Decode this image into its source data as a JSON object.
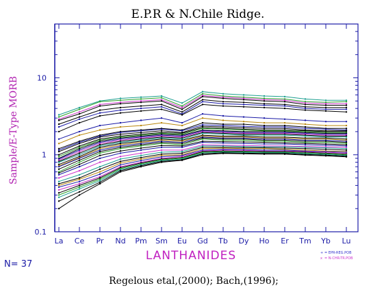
{
  "chart_data": {
    "type": "line",
    "title": "E.P.R & N.Chile Ridge.",
    "ylabel": "Sample/E-Type MORB",
    "xlabel": "LANTHANIDES",
    "y_scale": "log",
    "ylim": [
      0.1,
      50
    ],
    "y_ticks": [
      "0.1",
      "1",
      "10"
    ],
    "categories": [
      "La",
      "Ce",
      "Pr",
      "Nd",
      "Pm",
      "Sm",
      "Eu",
      "Gd",
      "Tb",
      "Dy",
      "Ho",
      "Er",
      "Tm",
      "Yb",
      "Lu"
    ],
    "legend": [
      "EPR-REG.POB",
      "N-CHR-TR.POB"
    ],
    "n_label": "N= 37",
    "source": "Regelous etal,(2000); Bach,(1996);",
    "colors": {
      "axes": "#1a1aa6",
      "title": "#000000",
      "ylabel": "#b01fb0",
      "xlabel": "#c020c0",
      "n_label": "#1a1aa6",
      "legend_epr": "#3333cc",
      "legend_nchr": "#cc33cc"
    },
    "series": [
      {
        "color": "#1b9e8f",
        "values": [
          3.3,
          4.1,
          5.0,
          5.4,
          5.6,
          5.8,
          4.7,
          6.6,
          6.2,
          6.0,
          5.8,
          5.7,
          5.3,
          5.1,
          5.1
        ]
      },
      {
        "color": "#2ca02c",
        "values": [
          3.1,
          3.9,
          4.9,
          5.1,
          5.3,
          5.5,
          4.3,
          6.2,
          5.8,
          5.6,
          5.4,
          5.3,
          4.9,
          4.8,
          4.9
        ]
      },
      {
        "color": "#cc33cc",
        "values": [
          2.9,
          3.6,
          4.5,
          4.8,
          5.0,
          5.2,
          4.1,
          5.9,
          5.6,
          5.4,
          5.2,
          5.1,
          4.7,
          4.6,
          4.6
        ]
      },
      {
        "color": "#000000",
        "values": [
          2.8,
          3.4,
          4.3,
          4.6,
          4.8,
          5.0,
          3.9,
          5.7,
          5.4,
          5.2,
          5.0,
          4.9,
          4.5,
          4.4,
          4.4
        ]
      },
      {
        "color": "#000000",
        "values": [
          2.5,
          3.1,
          3.8,
          4.1,
          4.3,
          4.5,
          3.6,
          5.2,
          4.9,
          4.8,
          4.6,
          4.5,
          4.2,
          4.1,
          4.1
        ]
      },
      {
        "color": "#1a1aa6",
        "values": [
          2.3,
          2.9,
          3.5,
          3.8,
          4.0,
          4.2,
          3.4,
          4.9,
          4.6,
          4.5,
          4.4,
          4.3,
          4.0,
          3.9,
          3.9
        ]
      },
      {
        "color": "#000000",
        "values": [
          2.0,
          2.6,
          3.2,
          3.5,
          3.7,
          3.9,
          3.3,
          4.5,
          4.3,
          4.2,
          4.1,
          4.0,
          3.8,
          3.7,
          3.6
        ]
      },
      {
        "color": "#1a1aa6",
        "values": [
          1.6,
          2.0,
          2.4,
          2.6,
          2.8,
          3.0,
          2.6,
          3.4,
          3.2,
          3.1,
          3.0,
          2.9,
          2.8,
          2.7,
          2.7
        ]
      },
      {
        "color": "#b8860b",
        "values": [
          1.4,
          1.8,
          2.1,
          2.3,
          2.4,
          2.6,
          2.4,
          3.0,
          2.8,
          2.7,
          2.6,
          2.6,
          2.5,
          2.4,
          2.4
        ]
      },
      {
        "color": "#000000",
        "values": [
          1.2,
          1.5,
          1.8,
          2.0,
          2.1,
          2.2,
          2.1,
          2.6,
          2.5,
          2.5,
          2.4,
          2.4,
          2.3,
          2.2,
          2.2
        ]
      },
      {
        "color": "#1a1aa6",
        "values": [
          1.15,
          1.45,
          1.75,
          1.95,
          2.05,
          2.15,
          2.05,
          2.45,
          2.4,
          2.35,
          2.3,
          2.3,
          2.2,
          2.15,
          2.1
        ]
      },
      {
        "color": "#000000",
        "values": [
          1.1,
          1.4,
          1.7,
          1.85,
          1.95,
          2.05,
          1.95,
          2.35,
          2.3,
          2.25,
          2.2,
          2.2,
          2.1,
          2.05,
          2.05
        ]
      },
      {
        "color": "#000000",
        "values": [
          1.0,
          1.3,
          1.6,
          1.75,
          1.85,
          1.95,
          1.9,
          2.25,
          2.2,
          2.15,
          2.1,
          2.1,
          2.05,
          2.0,
          2.0
        ]
      },
      {
        "color": "#2ca02c",
        "values": [
          0.95,
          1.25,
          1.55,
          1.7,
          1.8,
          1.9,
          1.85,
          2.2,
          2.15,
          2.1,
          2.05,
          2.05,
          2.0,
          1.95,
          1.95
        ]
      },
      {
        "color": "#000000",
        "values": [
          0.9,
          1.2,
          1.5,
          1.65,
          1.75,
          1.85,
          1.8,
          2.1,
          2.05,
          2.0,
          2.0,
          2.0,
          1.95,
          1.9,
          1.9
        ]
      },
      {
        "color": "#1a1aa6",
        "values": [
          0.88,
          1.15,
          1.45,
          1.6,
          1.7,
          1.8,
          1.75,
          2.05,
          2.0,
          1.95,
          1.95,
          1.95,
          1.9,
          1.85,
          1.85
        ]
      },
      {
        "color": "#cc33cc",
        "values": [
          0.85,
          1.1,
          1.4,
          1.55,
          1.65,
          1.75,
          1.7,
          2.0,
          1.95,
          1.9,
          1.9,
          1.9,
          1.85,
          1.8,
          1.8
        ]
      },
      {
        "color": "#000000",
        "values": [
          0.82,
          1.05,
          1.35,
          1.5,
          1.6,
          1.7,
          1.65,
          1.95,
          1.9,
          1.85,
          1.85,
          1.85,
          1.8,
          1.75,
          1.75
        ]
      },
      {
        "color": "#1b9e8f",
        "values": [
          0.8,
          1.0,
          1.3,
          1.45,
          1.55,
          1.65,
          1.6,
          1.9,
          1.85,
          1.8,
          1.8,
          1.8,
          1.75,
          1.7,
          1.7
        ]
      },
      {
        "color": "#000000",
        "values": [
          0.75,
          0.95,
          1.25,
          1.4,
          1.5,
          1.6,
          1.55,
          1.8,
          1.75,
          1.75,
          1.7,
          1.7,
          1.65,
          1.65,
          1.6
        ]
      },
      {
        "color": "#b8860b",
        "values": [
          0.72,
          0.92,
          1.2,
          1.35,
          1.45,
          1.55,
          1.5,
          1.75,
          1.7,
          1.7,
          1.65,
          1.65,
          1.6,
          1.6,
          1.55
        ]
      },
      {
        "color": "#1a1aa6",
        "values": [
          0.7,
          0.9,
          1.15,
          1.3,
          1.4,
          1.5,
          1.45,
          1.7,
          1.65,
          1.65,
          1.6,
          1.6,
          1.55,
          1.55,
          1.5
        ]
      },
      {
        "color": "#000000",
        "values": [
          0.65,
          0.85,
          1.1,
          1.25,
          1.35,
          1.45,
          1.4,
          1.65,
          1.6,
          1.6,
          1.55,
          1.55,
          1.5,
          1.5,
          1.45
        ]
      },
      {
        "color": "#2ca02c",
        "values": [
          0.6,
          0.8,
          1.05,
          1.2,
          1.3,
          1.4,
          1.35,
          1.6,
          1.55,
          1.55,
          1.5,
          1.5,
          1.45,
          1.45,
          1.4
        ]
      },
      {
        "color": "#000000",
        "values": [
          0.58,
          0.75,
          0.98,
          1.12,
          1.22,
          1.32,
          1.3,
          1.5,
          1.48,
          1.47,
          1.45,
          1.43,
          1.4,
          1.38,
          1.35
        ]
      },
      {
        "color": "#1a1aa6",
        "values": [
          0.55,
          0.7,
          0.9,
          1.05,
          1.15,
          1.25,
          1.25,
          1.45,
          1.42,
          1.4,
          1.38,
          1.38,
          1.35,
          1.33,
          1.3
        ]
      },
      {
        "color": "#cc33cc",
        "values": [
          0.5,
          0.62,
          0.8,
          0.95,
          1.05,
          1.15,
          1.15,
          1.35,
          1.33,
          1.32,
          1.3,
          1.3,
          1.28,
          1.27,
          1.25
        ]
      },
      {
        "color": "#1b9e8f",
        "values": [
          0.45,
          0.55,
          0.7,
          0.88,
          0.98,
          1.08,
          1.1,
          1.3,
          1.3,
          1.28,
          1.27,
          1.27,
          1.25,
          1.23,
          1.2
        ]
      },
      {
        "color": "#000000",
        "values": [
          0.42,
          0.5,
          0.65,
          0.82,
          0.92,
          1.02,
          1.05,
          1.25,
          1.25,
          1.24,
          1.23,
          1.22,
          1.2,
          1.18,
          1.15
        ]
      },
      {
        "color": "#b8860b",
        "values": [
          0.4,
          0.48,
          0.6,
          0.78,
          0.88,
          0.98,
          1.0,
          1.2,
          1.22,
          1.2,
          1.2,
          1.18,
          1.15,
          1.12,
          1.1
        ]
      },
      {
        "color": "#1a1aa6",
        "values": [
          0.38,
          0.45,
          0.56,
          0.74,
          0.84,
          0.94,
          0.98,
          1.15,
          1.18,
          1.17,
          1.15,
          1.15,
          1.12,
          1.1,
          1.08
        ]
      },
      {
        "color": "#cc33cc",
        "values": [
          0.35,
          0.42,
          0.52,
          0.7,
          0.8,
          0.9,
          0.95,
          1.12,
          1.15,
          1.14,
          1.12,
          1.12,
          1.1,
          1.08,
          1.05
        ]
      },
      {
        "color": "#000000",
        "values": [
          0.32,
          0.4,
          0.5,
          0.68,
          0.78,
          0.88,
          0.92,
          1.1,
          1.12,
          1.11,
          1.1,
          1.1,
          1.08,
          1.05,
          1.02
        ]
      },
      {
        "color": "#2ca02c",
        "values": [
          0.3,
          0.38,
          0.48,
          0.66,
          0.76,
          0.86,
          0.9,
          1.08,
          1.1,
          1.09,
          1.08,
          1.08,
          1.05,
          1.03,
          1.0
        ]
      },
      {
        "color": "#1b9e8f",
        "values": [
          0.28,
          0.36,
          0.46,
          0.64,
          0.74,
          0.84,
          0.88,
          1.05,
          1.08,
          1.07,
          1.06,
          1.06,
          1.03,
          1.01,
          0.98
        ]
      },
      {
        "color": "#000000",
        "values": [
          0.25,
          0.33,
          0.44,
          0.62,
          0.72,
          0.82,
          0.86,
          1.03,
          1.06,
          1.05,
          1.04,
          1.04,
          1.01,
          0.99,
          0.96
        ]
      },
      {
        "color": "#000000",
        "values": [
          0.2,
          0.3,
          0.42,
          0.6,
          0.7,
          0.8,
          0.85,
          1.0,
          1.04,
          1.03,
          1.02,
          1.02,
          0.99,
          0.97,
          0.94
        ]
      }
    ]
  }
}
